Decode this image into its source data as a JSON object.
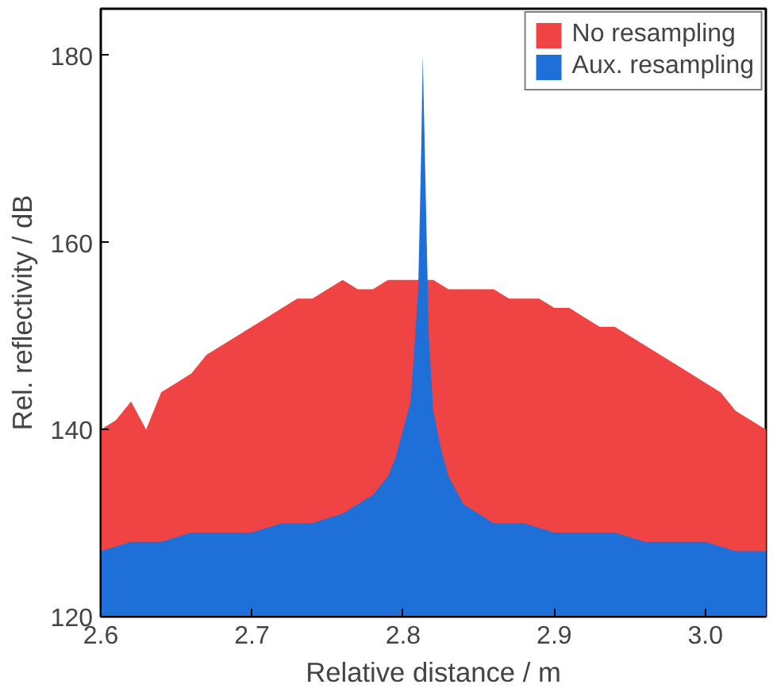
{
  "chart_data": {
    "type": "area",
    "xlabel": "Relative distance / m",
    "ylabel": "Rel. reflectivity / dB",
    "xlim": [
      2.6,
      3.04
    ],
    "ylim": [
      120,
      185
    ],
    "xticks": [
      2.6,
      2.7,
      2.8,
      2.9,
      {
        "value": 3.0,
        "label": "3.0"
      }
    ],
    "yticks": [
      120,
      140,
      160,
      180
    ],
    "grid": false,
    "legend": "top right",
    "series": [
      {
        "name": "No resampling",
        "color": "#f04444",
        "x": [
          2.6,
          2.61,
          2.62,
          2.63,
          2.64,
          2.65,
          2.66,
          2.67,
          2.68,
          2.69,
          2.7,
          2.71,
          2.72,
          2.73,
          2.74,
          2.75,
          2.76,
          2.77,
          2.78,
          2.79,
          2.8,
          2.81,
          2.82,
          2.83,
          2.84,
          2.85,
          2.86,
          2.87,
          2.88,
          2.89,
          2.9,
          2.91,
          2.92,
          2.93,
          2.94,
          2.95,
          2.96,
          2.97,
          2.98,
          2.99,
          3.0,
          3.01,
          3.02,
          3.03,
          3.04
        ],
        "values": [
          140,
          141,
          143,
          140,
          144,
          145,
          146,
          148,
          149,
          150,
          151,
          152,
          153,
          154,
          154,
          155,
          156,
          155,
          155,
          156,
          156,
          156,
          156,
          155,
          155,
          155,
          155,
          154,
          154,
          154,
          153,
          153,
          152,
          151,
          151,
          150,
          149,
          148,
          147,
          146,
          145,
          144,
          142,
          141,
          140
        ]
      },
      {
        "name": "Aux. resampling",
        "color": "#1f6fd8",
        "x": [
          2.6,
          2.62,
          2.64,
          2.66,
          2.68,
          2.7,
          2.72,
          2.74,
          2.76,
          2.77,
          2.78,
          2.79,
          2.795,
          2.8,
          2.805,
          2.808,
          2.81,
          2.812,
          2.813,
          2.815,
          2.817,
          2.82,
          2.825,
          2.83,
          2.84,
          2.86,
          2.88,
          2.9,
          2.92,
          2.94,
          2.96,
          2.98,
          3.0,
          3.02,
          3.04
        ],
        "values": [
          127,
          128,
          128,
          129,
          129,
          129,
          130,
          130,
          131,
          132,
          133,
          135,
          137,
          140,
          143,
          150,
          155,
          170,
          180,
          165,
          150,
          142,
          138,
          135,
          132,
          130,
          130,
          129,
          129,
          129,
          128,
          128,
          128,
          127,
          127
        ]
      }
    ]
  }
}
